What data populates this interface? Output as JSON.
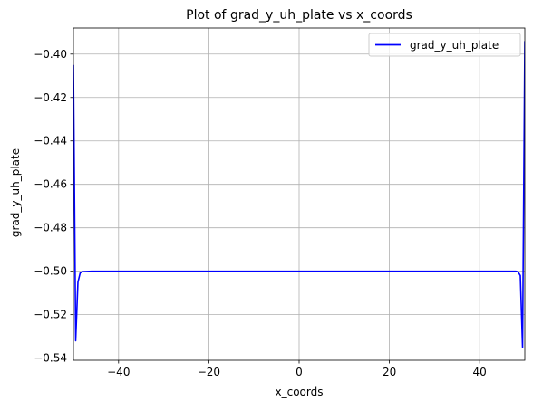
{
  "chart_data": {
    "type": "line",
    "title": "Plot of grad_y_uh_plate vs x_coords",
    "xlabel": "x_coords",
    "ylabel": "grad_y_uh_plate",
    "xlim": [
      -50,
      50
    ],
    "ylim": [
      -0.541,
      -0.388
    ],
    "xticks": [
      -40,
      -20,
      0,
      20,
      40
    ],
    "xtick_labels": [
      "−40",
      "−20",
      "0",
      "20",
      "40"
    ],
    "yticks": [
      -0.54,
      -0.52,
      -0.5,
      -0.48,
      -0.46,
      -0.44,
      -0.42,
      -0.4
    ],
    "ytick_labels": [
      "−0.54",
      "−0.52",
      "−0.50",
      "−0.48",
      "−0.46",
      "−0.44",
      "−0.42",
      "−0.40"
    ],
    "grid": true,
    "legend_position": "top-right",
    "series": [
      {
        "name": "grad_y_uh_plate",
        "color": "#0000ff",
        "points": [
          [
            -50.0,
            -0.405
          ],
          [
            -49.5,
            -0.532
          ],
          [
            -49.0,
            -0.505
          ],
          [
            -48.5,
            -0.5008
          ],
          [
            -48.0,
            -0.5002
          ],
          [
            -46.0,
            -0.5
          ],
          [
            -40.0,
            -0.5
          ],
          [
            -20.0,
            -0.5
          ],
          [
            0.0,
            -0.5
          ],
          [
            20.0,
            -0.5
          ],
          [
            40.0,
            -0.5
          ],
          [
            48.0,
            -0.5
          ],
          [
            48.5,
            -0.5003
          ],
          [
            49.0,
            -0.502
          ],
          [
            49.5,
            -0.535
          ],
          [
            50.0,
            -0.394
          ]
        ]
      }
    ]
  }
}
